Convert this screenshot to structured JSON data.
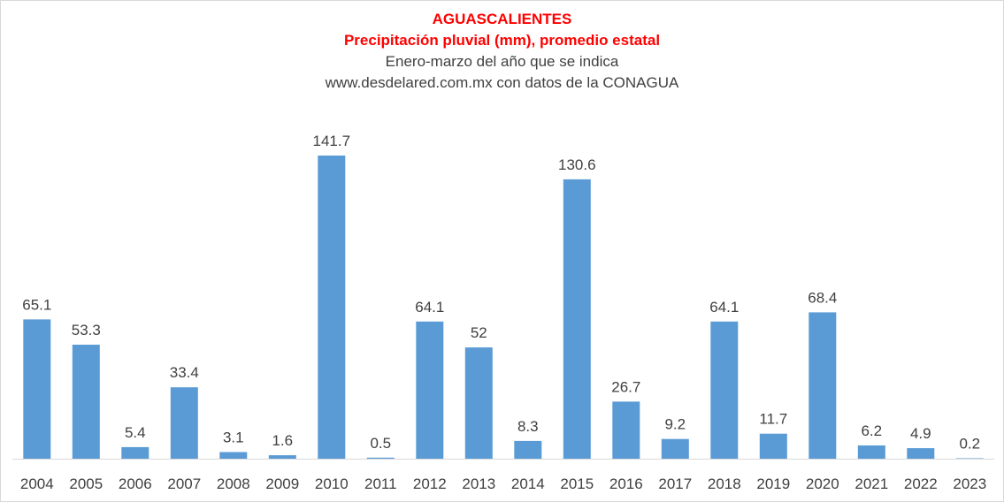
{
  "chart_data": {
    "type": "bar",
    "title": "AGUASCALIENTES",
    "subtitle": "Precipitación  pluvial  (mm), promedio  estatal",
    "subtitle2": "Enero-marzo  del año que se indica",
    "source": "www.desdelared.com.mx  con datos de la CONAGUA",
    "categories": [
      "2004",
      "2005",
      "2006",
      "2007",
      "2008",
      "2009",
      "2010",
      "2011",
      "2012",
      "2013",
      "2014",
      "2015",
      "2016",
      "2017",
      "2018",
      "2019",
      "2020",
      "2021",
      "2022",
      "2023"
    ],
    "values": [
      65.1,
      53.3,
      5.4,
      33.4,
      3.1,
      1.6,
      141.7,
      0.5,
      64.1,
      52,
      8.3,
      130.6,
      26.7,
      9.2,
      64.1,
      11.7,
      68.4,
      6.2,
      4.9,
      0.2
    ],
    "value_labels": [
      "65.1",
      "53.3",
      "5.4",
      "33.4",
      "3.1",
      "1.6",
      "141.7",
      "0.5",
      "64.1",
      "52",
      "8.3",
      "130.6",
      "26.7",
      "9.2",
      "64.1",
      "11.7",
      "68.4",
      "6.2",
      "4.9",
      "0.2"
    ],
    "bar_color": "#5b9bd5",
    "title_color": "#ff0000",
    "ylim": [
      0,
      141.7
    ],
    "grid": false,
    "legend": false
  }
}
